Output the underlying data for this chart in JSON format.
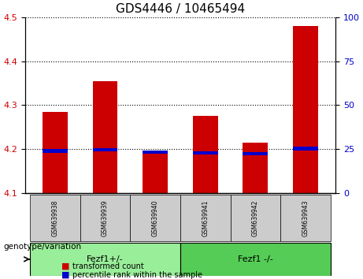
{
  "title": "GDS4446 / 10465494",
  "samples": [
    "GSM639938",
    "GSM639939",
    "GSM639940",
    "GSM639941",
    "GSM639942",
    "GSM639943"
  ],
  "red_values": [
    4.285,
    4.355,
    4.195,
    4.275,
    4.215,
    4.48
  ],
  "blue_values": [
    4.196,
    4.199,
    4.193,
    4.192,
    4.19,
    4.201
  ],
  "y_min": 4.1,
  "y_max": 4.5,
  "y_ticks_left": [
    4.1,
    4.2,
    4.3,
    4.4,
    4.5
  ],
  "y_ticks_right": [
    0,
    25,
    50,
    75,
    100
  ],
  "bar_width": 0.5,
  "red_color": "#cc0000",
  "blue_color": "#0000cc",
  "group1_label": "Fezf1+/-",
  "group2_label": "Fezf1 -/-",
  "group1_indices": [
    0,
    1,
    2
  ],
  "group2_indices": [
    3,
    4,
    5
  ],
  "group1_color": "#99ee99",
  "group2_color": "#55cc55",
  "genotype_label": "genotype/variation",
  "legend_red": "transformed count",
  "legend_blue": "percentile rank within the sample",
  "bg_color": "#cccccc",
  "title_fontsize": 11,
  "tick_fontsize": 8,
  "label_fontsize": 7.5
}
